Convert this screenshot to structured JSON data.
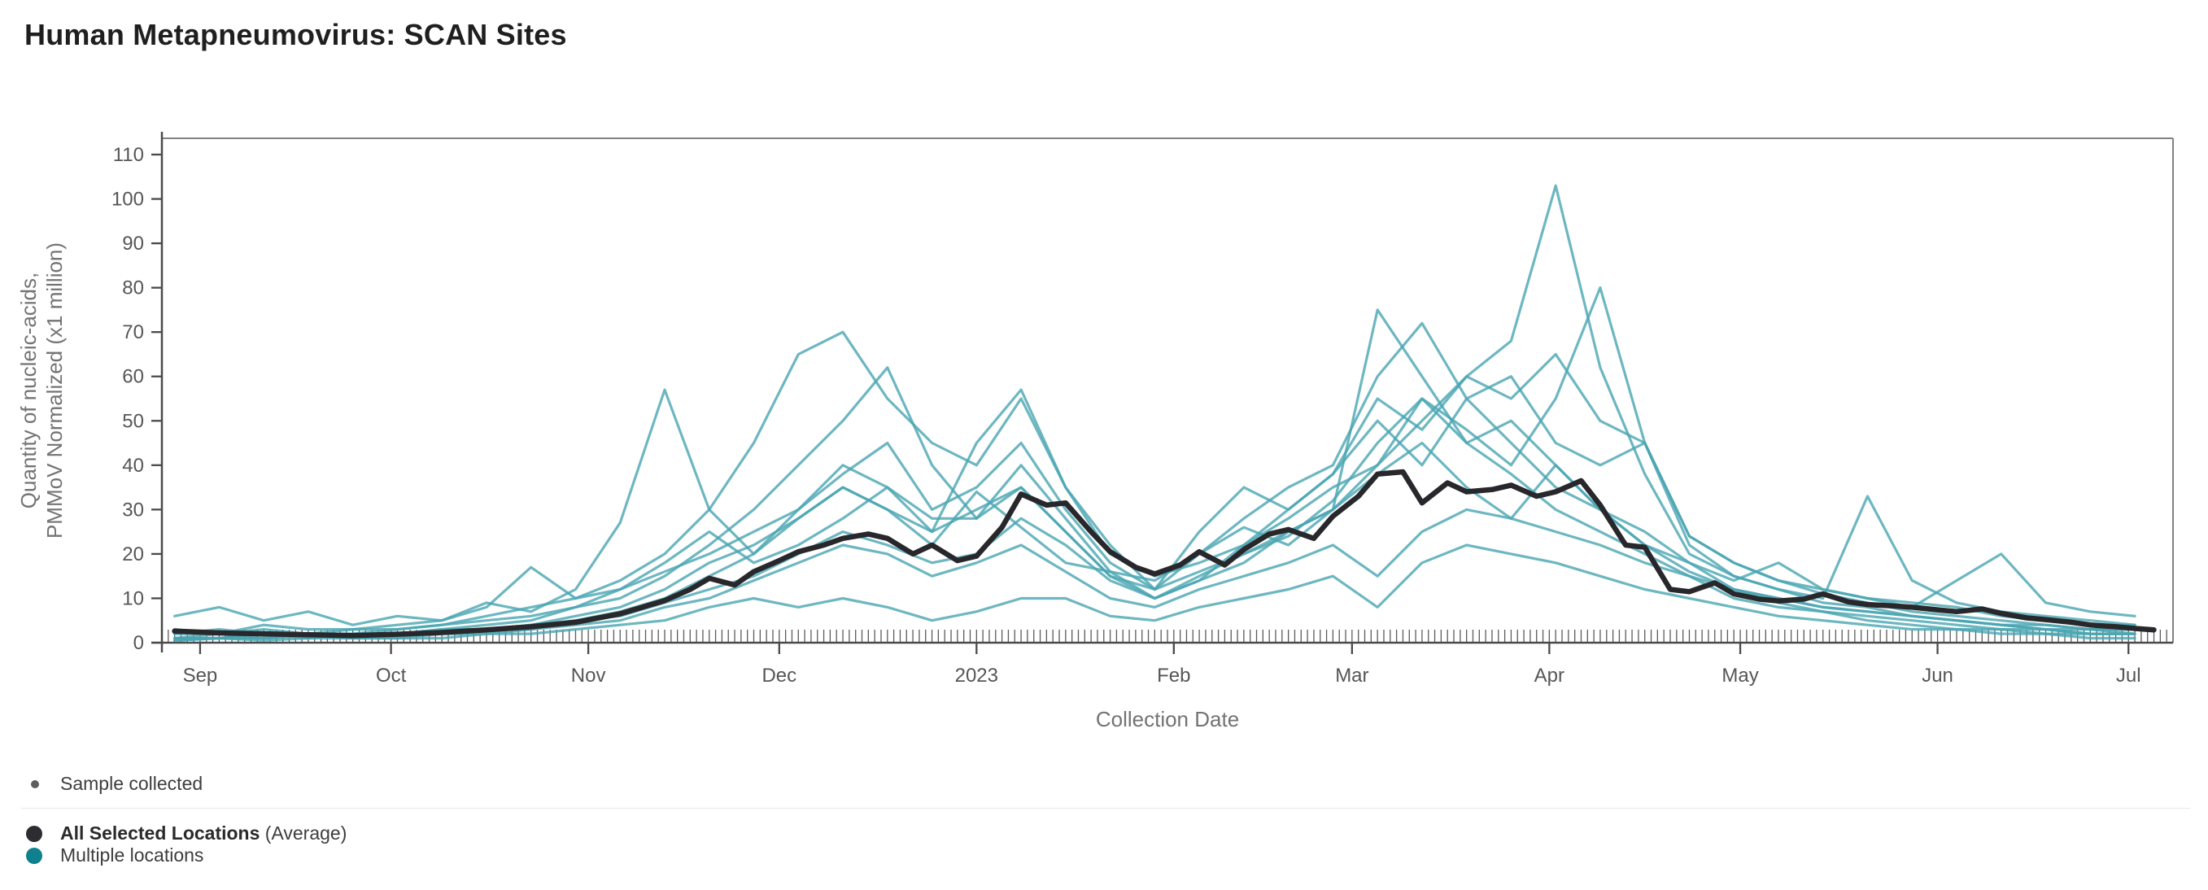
{
  "header": {
    "title": "Human Metapneumovirus: SCAN Sites"
  },
  "legend": {
    "sample": {
      "label": "Sample collected",
      "dot_color": "#5d5d5d"
    },
    "series": [
      {
        "label": "All Selected Locations",
        "suffix": " (Average)",
        "color": "#2c2c31"
      },
      {
        "label": "Multiple locations",
        "suffix": "",
        "color": "#0f808d"
      }
    ]
  },
  "colors": {
    "title": "#1f1f1f",
    "frame": "#828282",
    "axis": "#4a4a4a",
    "tick_label": "#565656",
    "axis_title": "#737373",
    "divider": "#e5e8ea",
    "teal_line": "#49a5b1",
    "average_line": "#28282c",
    "rug_tick": "#3f3f3f"
  },
  "chart_data": {
    "type": "line",
    "title": "Human Metapneumovirus: SCAN Sites",
    "xlabel": "Collection Date",
    "ylabel_lines": [
      "Quantity of nucleic-acids,",
      "PMMoV Normalized (x1 million)"
    ],
    "ylim": [
      0,
      113.5
    ],
    "y_ticks": [
      0,
      10,
      20,
      30,
      40,
      50,
      60,
      70,
      80,
      90,
      100,
      110
    ],
    "x_axis_note": "days measured from 2022-08-26 (day 0) to 2023-07-07 (day 316)",
    "x_range_days": [
      0,
      316
    ],
    "x_ticks": [
      {
        "label": "Sep",
        "day": 6
      },
      {
        "label": "Oct",
        "day": 36
      },
      {
        "label": "Nov",
        "day": 67
      },
      {
        "label": "Dec",
        "day": 97
      },
      {
        "label": "2023",
        "day": 128
      },
      {
        "label": "Feb",
        "day": 159
      },
      {
        "label": "Mar",
        "day": 187
      },
      {
        "label": "Apr",
        "day": 218
      },
      {
        "label": "May",
        "day": 248
      },
      {
        "label": "Jun",
        "day": 279
      },
      {
        "label": "Jul",
        "day": 309
      }
    ],
    "sample_rug": {
      "start_day": 0,
      "end_day": 315,
      "step": 1
    },
    "average_series": {
      "name": "All Selected Locations (Average)",
      "color": "#28282c",
      "days": [
        2,
        9,
        16,
        23,
        30,
        37,
        44,
        51,
        58,
        65,
        72,
        79,
        83,
        86,
        90,
        93,
        97,
        100,
        104,
        107,
        111,
        114,
        118,
        121,
        125,
        128,
        132,
        135,
        139,
        142,
        146,
        149,
        153,
        156,
        160,
        163,
        167,
        170,
        174,
        177,
        181,
        184,
        188,
        191,
        195,
        198,
        202,
        205,
        209,
        212,
        216,
        219,
        223,
        226,
        230,
        233,
        237,
        240,
        244,
        247,
        251,
        254,
        258,
        261,
        265,
        268,
        272,
        275,
        279,
        282,
        286,
        289,
        293,
        296,
        300,
        303,
        307,
        310,
        313
      ],
      "values": [
        2.6,
        2.2,
        2.0,
        1.8,
        1.6,
        1.9,
        2.3,
        2.9,
        3.6,
        4.6,
        6.5,
        9.5,
        12,
        14.5,
        13,
        16,
        18.5,
        20.5,
        22,
        23.5,
        24.5,
        23.5,
        20,
        22,
        18.5,
        19.5,
        26,
        33.5,
        31,
        31.5,
        25,
        20.5,
        17,
        15.5,
        17.5,
        20.5,
        17.5,
        21,
        24.5,
        25.5,
        23.5,
        28.5,
        33,
        38,
        38.5,
        31.5,
        36,
        34,
        34.5,
        35.5,
        33,
        34,
        36.5,
        31,
        22,
        21.5,
        12,
        11.5,
        13.5,
        11,
        9.8,
        9.4,
        9.8,
        11,
        9.2,
        8.6,
        8.3,
        8,
        7.4,
        7,
        7.6,
        6.6,
        5.6,
        5.2,
        4.6,
        4,
        3.6,
        3.2,
        2.9
      ]
    },
    "site_series": {
      "name": "Multiple locations",
      "color": "#49a5b1",
      "opacity": 0.8,
      "weekly_days": [
        2,
        9,
        16,
        23,
        30,
        37,
        44,
        51,
        58,
        65,
        72,
        79,
        86,
        93,
        100,
        107,
        114,
        121,
        128,
        135,
        142,
        149,
        156,
        163,
        170,
        177,
        184,
        191,
        198,
        205,
        212,
        219,
        226,
        233,
        240,
        247,
        254,
        261,
        268,
        275,
        282,
        289,
        296,
        303,
        310
      ],
      "series": [
        {
          "values": [
            6,
            8,
            5,
            7,
            4,
            6,
            5,
            9,
            7,
            12,
            27,
            57,
            30,
            20,
            28,
            35,
            30,
            22,
            34,
            26,
            18,
            16,
            14,
            20,
            26,
            22,
            30,
            38,
            45,
            35,
            28,
            40,
            30,
            22,
            16,
            12,
            10,
            8,
            7,
            6,
            5,
            4,
            4,
            3,
            3
          ]
        },
        {
          "values": [
            2,
            3,
            2,
            2,
            3,
            3,
            4,
            6,
            8,
            10,
            14,
            20,
            30,
            45,
            65,
            70,
            55,
            45,
            40,
            55,
            35,
            20,
            15,
            18,
            22,
            28,
            35,
            40,
            55,
            45,
            38,
            30,
            25,
            20,
            15,
            10,
            8,
            7,
            5,
            4,
            3,
            3,
            2,
            2,
            2
          ]
        },
        {
          "values": [
            1,
            2,
            1,
            2,
            2,
            2,
            3,
            4,
            5,
            8,
            10,
            15,
            22,
            30,
            40,
            50,
            62,
            40,
            28,
            35,
            25,
            15,
            10,
            14,
            18,
            25,
            30,
            75,
            60,
            45,
            50,
            40,
            30,
            22,
            18,
            12,
            9,
            7,
            6,
            5,
            4,
            3,
            3,
            2,
            2
          ]
        },
        {
          "values": [
            1,
            1,
            2,
            1,
            2,
            2,
            3,
            3,
            4,
            6,
            8,
            12,
            18,
            22,
            28,
            35,
            30,
            25,
            45,
            57,
            35,
            22,
            12,
            16,
            20,
            24,
            32,
            45,
            55,
            48,
            40,
            55,
            80,
            45,
            24,
            18,
            14,
            11,
            9,
            7,
            6,
            5,
            4,
            3,
            3
          ]
        },
        {
          "values": [
            0.5,
            1,
            1,
            1.5,
            1,
            2,
            2,
            3,
            4,
            5,
            7,
            10,
            15,
            20,
            30,
            40,
            35,
            28,
            28,
            40,
            28,
            16,
            10,
            14,
            22,
            30,
            38,
            55,
            48,
            60,
            68,
            103,
            62,
            38,
            20,
            15,
            12,
            9,
            8,
            6,
            5,
            4,
            3,
            2,
            2
          ]
        },
        {
          "values": [
            2,
            2,
            3,
            2,
            2,
            3,
            4,
            5,
            6,
            8,
            12,
            16,
            20,
            25,
            30,
            38,
            45,
            30,
            35,
            45,
            30,
            18,
            12,
            20,
            28,
            35,
            40,
            60,
            72,
            55,
            60,
            45,
            40,
            45,
            22,
            15,
            12,
            10,
            33,
            14,
            9,
            7,
            6,
            5,
            4
          ]
        },
        {
          "values": [
            1,
            1,
            1,
            2,
            1,
            1,
            2,
            2,
            3,
            4,
            5,
            8,
            10,
            14,
            18,
            22,
            20,
            15,
            18,
            22,
            16,
            10,
            8,
            12,
            15,
            18,
            22,
            15,
            25,
            30,
            28,
            25,
            22,
            18,
            15,
            12,
            10,
            8,
            7,
            6,
            5,
            4,
            3,
            3,
            2
          ]
        },
        {
          "values": [
            3,
            2,
            4,
            3,
            3,
            4,
            5,
            8,
            17,
            10,
            12,
            18,
            25,
            18,
            22,
            28,
            35,
            25,
            30,
            35,
            25,
            15,
            12,
            25,
            35,
            30,
            38,
            50,
            40,
            55,
            45,
            35,
            30,
            25,
            18,
            14,
            18,
            12,
            10,
            9,
            8,
            6,
            5,
            4,
            4
          ]
        },
        {
          "values": [
            1,
            1,
            2,
            1,
            2,
            2,
            2,
            3,
            3,
            5,
            6,
            9,
            12,
            15,
            20,
            25,
            22,
            18,
            20,
            28,
            22,
            14,
            10,
            15,
            20,
            25,
            30,
            40,
            50,
            60,
            55,
            65,
            50,
            45,
            24,
            18,
            14,
            12,
            10,
            8,
            14,
            20,
            9,
            7,
            6
          ]
        },
        {
          "values": [
            0.5,
            1,
            0.5,
            1,
            1,
            1,
            1,
            2,
            2,
            3,
            4,
            5,
            8,
            10,
            8,
            10,
            8,
            5,
            7,
            10,
            10,
            6,
            5,
            8,
            10,
            12,
            15,
            8,
            18,
            22,
            20,
            18,
            15,
            12,
            10,
            8,
            6,
            5,
            4,
            3,
            3,
            2,
            2,
            1,
            1
          ]
        }
      ]
    },
    "legend_position": "bottom-left",
    "grid": false
  }
}
